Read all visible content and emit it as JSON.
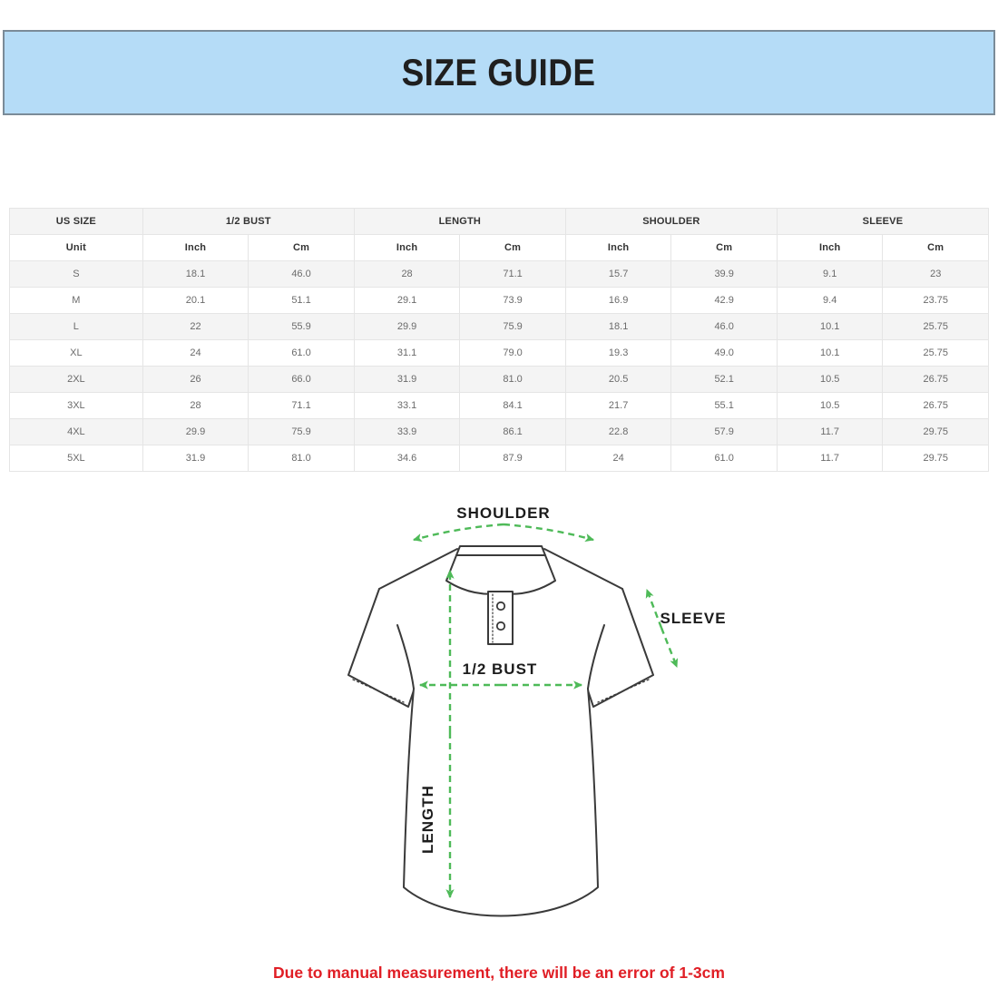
{
  "header": {
    "title": "SIZE GUIDE",
    "bg_color": "#b5dcf7",
    "border_color": "#7b8b98"
  },
  "table": {
    "group_headers": [
      {
        "label": "US SIZE"
      },
      {
        "label": "1/2 BUST"
      },
      {
        "label": "LENGTH"
      },
      {
        "label": "SHOULDER"
      },
      {
        "label": "SLEEVE"
      }
    ],
    "unit_headers": [
      "Unit",
      "Inch",
      "Cm",
      "Inch",
      "Cm",
      "Inch",
      "Cm",
      "Inch",
      "Cm"
    ],
    "rows": [
      {
        "size": "S",
        "values": [
          "18.1",
          "46.0",
          "28",
          "71.1",
          "15.7",
          "39.9",
          "9.1",
          "23"
        ]
      },
      {
        "size": "M",
        "values": [
          "20.1",
          "51.1",
          "29.1",
          "73.9",
          "16.9",
          "42.9",
          "9.4",
          "23.75"
        ]
      },
      {
        "size": "L",
        "values": [
          "22",
          "55.9",
          "29.9",
          "75.9",
          "18.1",
          "46.0",
          "10.1",
          "25.75"
        ]
      },
      {
        "size": "XL",
        "values": [
          "24",
          "61.0",
          "31.1",
          "79.0",
          "19.3",
          "49.0",
          "10.1",
          "25.75"
        ]
      },
      {
        "size": "2XL",
        "values": [
          "26",
          "66.0",
          "31.9",
          "81.0",
          "20.5",
          "52.1",
          "10.5",
          "26.75"
        ]
      },
      {
        "size": "3XL",
        "values": [
          "28",
          "71.1",
          "33.1",
          "84.1",
          "21.7",
          "55.1",
          "10.5",
          "26.75"
        ]
      },
      {
        "size": "4XL",
        "values": [
          "29.9",
          "75.9",
          "33.9",
          "86.1",
          "22.8",
          "57.9",
          "11.7",
          "29.75"
        ]
      },
      {
        "size": "5XL",
        "values": [
          "31.9",
          "81.0",
          "34.6",
          "87.9",
          "24",
          "61.0",
          "11.7",
          "29.75"
        ]
      }
    ]
  },
  "diagram": {
    "labels": {
      "shoulder": "SHOULDER",
      "sleeve": "SLEEVE",
      "bust": "1/2 BUST",
      "length": "LENGTH"
    },
    "arrow_color": "#4eba58",
    "outline_color": "#3a3a3a"
  },
  "footer": {
    "disclaimer": "Due to manual measurement, there will be an error of 1-3cm",
    "color": "#e01e25"
  }
}
